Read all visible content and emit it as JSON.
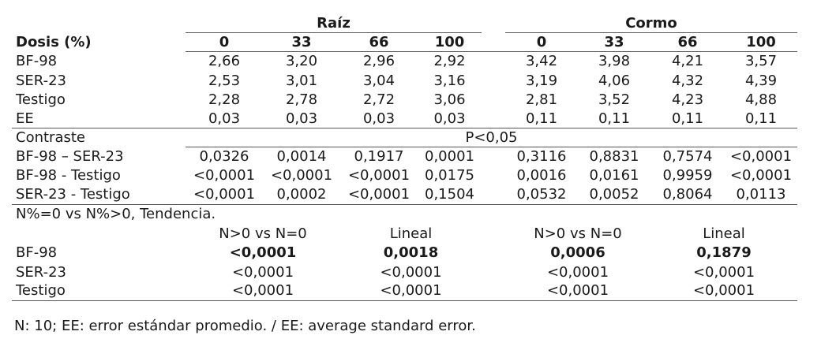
{
  "header": {
    "group_raiz": "Raíz",
    "group_cormo": "Cormo",
    "dosis_label": "Dosis (%)",
    "doses": [
      "0",
      "33",
      "66",
      "100",
      "0",
      "33",
      "66",
      "100"
    ]
  },
  "means": [
    {
      "label": "BF-98",
      "values": [
        "2,66",
        "3,20",
        "2,96",
        "2,92",
        "3,42",
        "3,98",
        "4,21",
        "3,57"
      ]
    },
    {
      "label": "SER-23",
      "values": [
        "2,53",
        "3,01",
        "3,04",
        "3,16",
        "3,19",
        "4,06",
        "4,32",
        "4,39"
      ]
    },
    {
      "label": "Testigo",
      "values": [
        "2,28",
        "2,78",
        "2,72",
        "3,06",
        "2,81",
        "3,52",
        "4,23",
        "4,88"
      ]
    },
    {
      "label": "EE",
      "values": [
        "0,03",
        "0,03",
        "0,03",
        "0,03",
        "0,11",
        "0,11",
        "0,11",
        "0,11"
      ]
    }
  ],
  "contrast": {
    "label": "Contraste",
    "p_label": "P<0,05",
    "rows": [
      {
        "label": "BF-98 – SER-23",
        "values": [
          "0,0326",
          "0,0014",
          "0,1917",
          "0,0001",
          "0,3116",
          "0,8831",
          "0,7574",
          "<0,0001"
        ]
      },
      {
        "label": "BF-98 - Testigo",
        "values": [
          "<0,0001",
          "<0,0001",
          "<0,0001",
          "0,0175",
          "0,0016",
          "0,0161",
          "0,9959",
          "<0,0001"
        ]
      },
      {
        "label": "SER-23 - Testigo",
        "values": [
          "<0,0001",
          "0,0002",
          "<0,0001",
          "0,1504",
          "0,0532",
          "0,0052",
          "0,8064",
          "0,0113"
        ]
      }
    ]
  },
  "trend": {
    "title": "N%=0 vs N%>0, Tendencia.",
    "headers": [
      "N>0 vs N=0",
      "Lineal",
      "N>0 vs N=0",
      "Lineal"
    ],
    "rows": [
      {
        "label": "BF-98",
        "values": [
          "<0,0001",
          "0,0018",
          "0,0006",
          "0,1879"
        ]
      },
      {
        "label": "SER-23",
        "values": [
          "<0,0001",
          "<0,0001",
          "<0,0001",
          "<0,0001"
        ]
      },
      {
        "label": "Testigo",
        "values": [
          "<0,0001",
          "<0,0001",
          "<0,0001",
          "<0,0001"
        ]
      }
    ]
  },
  "footnote": "N: 10; EE: error estándar promedio. / EE: average standard error."
}
